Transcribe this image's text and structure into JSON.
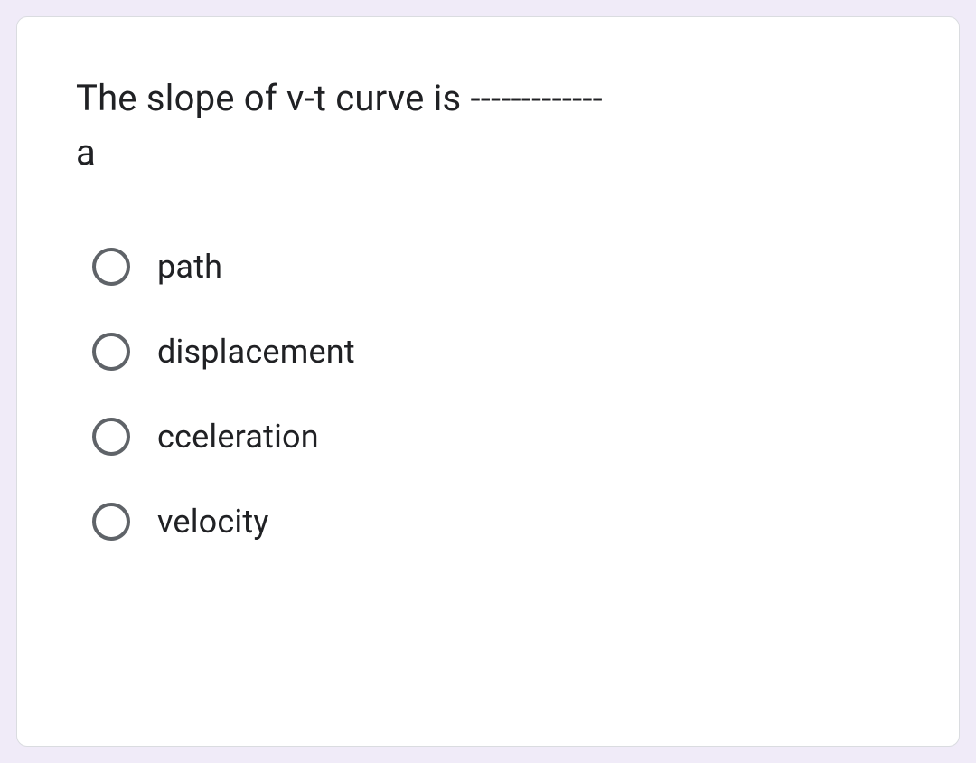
{
  "question": {
    "text_line1": "The slope of v-t curve is -------------",
    "text_line2": "a"
  },
  "options": [
    {
      "label": "path"
    },
    {
      "label": "displacement"
    },
    {
      "label": "cceleration"
    },
    {
      "label": "velocity"
    }
  ],
  "colors": {
    "page_background": "#f0ebf8",
    "card_background": "#ffffff",
    "card_border": "#dadce0",
    "text": "#202124",
    "radio_border": "#5f6368"
  }
}
